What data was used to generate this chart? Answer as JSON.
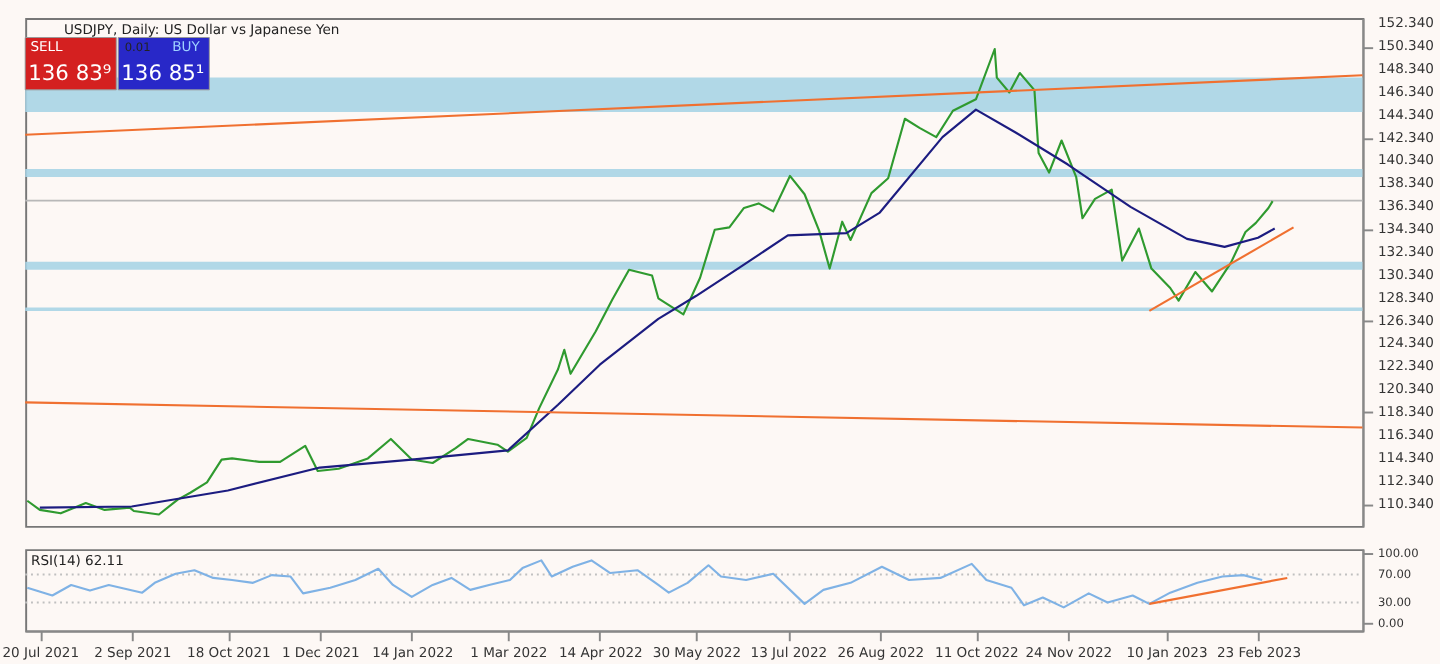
{
  "chart_data": [
    {
      "type": "line",
      "title": "USDJPY, Daily: US Dollar vs Japanese Yen",
      "annotations": [
        "SELL",
        "0.01",
        "BUY",
        "136 83⁹",
        "136 85¹"
      ],
      "xlim": [
        "2021-07-13",
        "2023-04-14"
      ],
      "ylim": [
        108.4,
        152.8
      ],
      "yticks": [
        {
          "value": 110.34,
          "label": "110.340"
        },
        {
          "value": 112.34,
          "label": "112.340"
        },
        {
          "value": 114.34,
          "label": "114.340"
        },
        {
          "value": 116.34,
          "label": "116.340"
        },
        {
          "value": 118.34,
          "label": "118.340"
        },
        {
          "value": 120.34,
          "label": "120.340"
        },
        {
          "value": 122.34,
          "label": "122.340"
        },
        {
          "value": 124.34,
          "label": "124.340"
        },
        {
          "value": 126.34,
          "label": "126.340"
        },
        {
          "value": 128.34,
          "label": "128.340"
        },
        {
          "value": 130.34,
          "label": "130.340"
        },
        {
          "value": 132.34,
          "label": "132.340"
        },
        {
          "value": 134.34,
          "label": "134.340"
        },
        {
          "value": 136.34,
          "label": "136.340"
        },
        {
          "value": 138.34,
          "label": "138.340"
        },
        {
          "value": 140.34,
          "label": "140.340"
        },
        {
          "value": 142.34,
          "label": "142.340"
        },
        {
          "value": 144.34,
          "label": "144.340"
        },
        {
          "value": 146.34,
          "label": "146.340"
        },
        {
          "value": 148.34,
          "label": "148.340"
        },
        {
          "value": 150.34,
          "label": "150.340"
        },
        {
          "value": 152.34,
          "label": "152.340"
        }
      ],
      "tick_labels": "y",
      "grid": false,
      "bands": [
        {
          "axis": "y",
          "from": 144.6,
          "to": 147.6,
          "color": "#a8d4e6"
        },
        {
          "axis": "y",
          "from": 138.9,
          "to": 139.6,
          "color": "#a8d4e6"
        },
        {
          "axis": "y",
          "from": 130.8,
          "to": 131.5,
          "color": "#a8d4e6"
        },
        {
          "axis": "y",
          "from": 127.2,
          "to": 127.5,
          "color": "#a8d4e6"
        }
      ],
      "ref_lines": [
        {
          "axis": "y",
          "value": 136.84,
          "color": "#b8b8b8",
          "line_style": "solid"
        }
      ],
      "series": [
        {
          "color": "#2f9a2f",
          "x": [
            "2021-07-14",
            "2021-07-20",
            "2021-07-30",
            "2021-08-11",
            "2021-08-20",
            "2021-09-01",
            "2021-09-03",
            "2021-09-15",
            "2021-09-24",
            "2021-09-30",
            "2021-10-08",
            "2021-10-15",
            "2021-10-20",
            "2021-11-02",
            "2021-11-12",
            "2021-11-24",
            "2021-11-30",
            "2021-12-10",
            "2021-12-24",
            "2022-01-04",
            "2022-01-14",
            "2022-01-24",
            "2022-02-04",
            "2022-02-10",
            "2022-02-24",
            "2022-03-01",
            "2022-03-10",
            "2022-03-16",
            "2022-03-25",
            "2022-03-28",
            "2022-03-31",
            "2022-04-12",
            "2022-04-20",
            "2022-04-28",
            "2022-05-09",
            "2022-05-12",
            "2022-05-24",
            "2022-06-01",
            "2022-06-08",
            "2022-06-15",
            "2022-06-22",
            "2022-06-29",
            "2022-07-06",
            "2022-07-14",
            "2022-07-21",
            "2022-07-28",
            "2022-08-02",
            "2022-08-08",
            "2022-08-12",
            "2022-08-22",
            "2022-08-30",
            "2022-09-07",
            "2022-09-14",
            "2022-09-22",
            "2022-09-30",
            "2022-10-11",
            "2022-10-20",
            "2022-10-21",
            "2022-10-27",
            "2022-11-01",
            "2022-11-08",
            "2022-11-10",
            "2022-11-15",
            "2022-11-21",
            "2022-11-28",
            "2022-12-01",
            "2022-12-07",
            "2022-12-15",
            "2022-12-20",
            "2022-12-28",
            "2023-01-03",
            "2023-01-12",
            "2023-01-16",
            "2023-01-24",
            "2023-02-01",
            "2023-02-10",
            "2023-02-17",
            "2023-02-22",
            "2023-02-28",
            "2023-03-02"
          ],
          "values": [
            110.6,
            109.8,
            109.5,
            110.4,
            109.8,
            110.0,
            109.7,
            109.4,
            110.7,
            111.3,
            112.2,
            114.2,
            114.3,
            114.0,
            114.0,
            115.4,
            113.2,
            113.4,
            114.3,
            116.0,
            114.2,
            113.9,
            115.2,
            116.0,
            115.5,
            114.9,
            116.1,
            118.7,
            122.1,
            123.8,
            121.7,
            125.4,
            128.2,
            130.8,
            130.3,
            128.3,
            126.9,
            130.1,
            134.3,
            134.5,
            136.2,
            136.6,
            135.9,
            139.0,
            137.4,
            134.2,
            130.9,
            135.0,
            133.4,
            137.5,
            138.8,
            144.0,
            143.2,
            142.4,
            144.7,
            145.7,
            150.1,
            147.6,
            146.3,
            148.0,
            146.5,
            141.0,
            139.3,
            142.1,
            138.9,
            135.3,
            137.0,
            137.8,
            131.6,
            134.4,
            130.9,
            129.2,
            128.1,
            130.6,
            128.9,
            131.4,
            134.1,
            134.9,
            136.2,
            136.8
          ]
        },
        {
          "color": "#1c1c80",
          "x": [
            "2021-07-20",
            "2021-09-02",
            "2021-10-18",
            "2021-12-01",
            "2022-01-14",
            "2022-03-01",
            "2022-03-25",
            "2022-04-14",
            "2022-05-12",
            "2022-05-30",
            "2022-06-20",
            "2022-07-13",
            "2022-08-10",
            "2022-08-26",
            "2022-09-25",
            "2022-10-11",
            "2022-10-30",
            "2022-11-24",
            "2022-12-24",
            "2023-01-20",
            "2023-02-07",
            "2023-02-23",
            "2023-03-03"
          ],
          "values": [
            110.0,
            110.1,
            111.5,
            113.5,
            114.2,
            115.0,
            119.0,
            122.5,
            126.5,
            128.5,
            131.0,
            133.8,
            134.0,
            135.8,
            142.4,
            144.8,
            142.8,
            140.0,
            136.3,
            133.5,
            132.8,
            133.6,
            134.4
          ]
        },
        {
          "color": "#f07030",
          "x": [
            "2021-07-13",
            "2023-04-14"
          ],
          "values": [
            142.6,
            147.8
          ]
        },
        {
          "color": "#f07030",
          "x": [
            "2021-07-13",
            "2023-04-14"
          ],
          "values": [
            119.2,
            117.0
          ]
        },
        {
          "color": "#f07030",
          "x": [
            "2023-01-02",
            "2023-03-12"
          ],
          "values": [
            127.2,
            134.5
          ]
        }
      ]
    },
    {
      "type": "line",
      "title": "RSI(14) 62.11",
      "xlim": [
        "2021-07-13",
        "2023-04-14"
      ],
      "ylim": [
        -10,
        106
      ],
      "xticks": [
        {
          "value": "2021-07-20",
          "label": "20 Jul 2021"
        },
        {
          "value": "2021-09-02",
          "label": "2 Sep 2021"
        },
        {
          "value": "2021-10-18",
          "label": "18 Oct 2021"
        },
        {
          "value": "2021-12-01",
          "label": "1 Dec 2021"
        },
        {
          "value": "2022-01-14",
          "label": "14 Jan 2022"
        },
        {
          "value": "2022-03-01",
          "label": "1 Mar 2022"
        },
        {
          "value": "2022-04-14",
          "label": "14 Apr 2022"
        },
        {
          "value": "2022-05-30",
          "label": "30 May 2022"
        },
        {
          "value": "2022-07-13",
          "label": "13 Jul 2022"
        },
        {
          "value": "2022-08-26",
          "label": "26 Aug 2022"
        },
        {
          "value": "2022-10-11",
          "label": "11 Oct 2022"
        },
        {
          "value": "2022-11-24",
          "label": "24 Nov 2022"
        },
        {
          "value": "2023-01-10",
          "label": "10 Jan 2023"
        },
        {
          "value": "2023-02-23",
          "label": "23 Feb 2023"
        }
      ],
      "yticks": [
        {
          "value": 0,
          "label": "0.00"
        },
        {
          "value": 30,
          "label": "30.00"
        },
        {
          "value": 70,
          "label": "70.00"
        },
        {
          "value": 100,
          "label": "100.00"
        }
      ],
      "grid": false,
      "ref_lines": [
        {
          "axis": "y",
          "value": 30,
          "color": "#c0c0c0",
          "line_style": "dotted"
        },
        {
          "axis": "y",
          "value": 70,
          "color": "#c0c0c0",
          "line_style": "dotted"
        }
      ],
      "series": [
        {
          "color": "#7fb2e5",
          "x": [
            "2021-07-14",
            "2021-07-26",
            "2021-08-04",
            "2021-08-13",
            "2021-08-22",
            "2021-09-07",
            "2021-09-13",
            "2021-09-23",
            "2021-10-02",
            "2021-10-11",
            "2021-10-20",
            "2021-10-30",
            "2021-11-08",
            "2021-11-17",
            "2021-11-23",
            "2021-12-06",
            "2021-12-18",
            "2021-12-29",
            "2022-01-05",
            "2022-01-14",
            "2022-01-24",
            "2022-02-02",
            "2022-02-11",
            "2022-02-20",
            "2022-03-02",
            "2022-03-08",
            "2022-03-17",
            "2022-03-22",
            "2022-04-01",
            "2022-04-10",
            "2022-04-19",
            "2022-05-02",
            "2022-05-12",
            "2022-05-17",
            "2022-05-26",
            "2022-06-05",
            "2022-06-11",
            "2022-06-23",
            "2022-07-06",
            "2022-07-21",
            "2022-07-30",
            "2022-08-12",
            "2022-08-27",
            "2022-09-09",
            "2022-09-24",
            "2022-10-09",
            "2022-10-16",
            "2022-10-28",
            "2022-11-03",
            "2022-11-12",
            "2022-11-22",
            "2022-12-04",
            "2022-12-13",
            "2022-12-25",
            "2023-01-02",
            "2023-01-12",
            "2023-01-25",
            "2023-02-06",
            "2023-02-16",
            "2023-02-25"
          ],
          "values": [
            51,
            40,
            55,
            47,
            55,
            44,
            58,
            71,
            76,
            65,
            62,
            58,
            69,
            67,
            43,
            51,
            62,
            78,
            55,
            38,
            55,
            65,
            48,
            55,
            62,
            79,
            90,
            67,
            81,
            90,
            72,
            76,
            55,
            44,
            58,
            83,
            67,
            62,
            71,
            28,
            48,
            58,
            81,
            62,
            65,
            85,
            62,
            51,
            26,
            37,
            23,
            43,
            30,
            40,
            28,
            44,
            58,
            67,
            69,
            62
          ]
        },
        {
          "color": "#f07030",
          "x": [
            "2023-01-02",
            "2023-03-09"
          ],
          "values": [
            28,
            65
          ]
        }
      ]
    }
  ]
}
